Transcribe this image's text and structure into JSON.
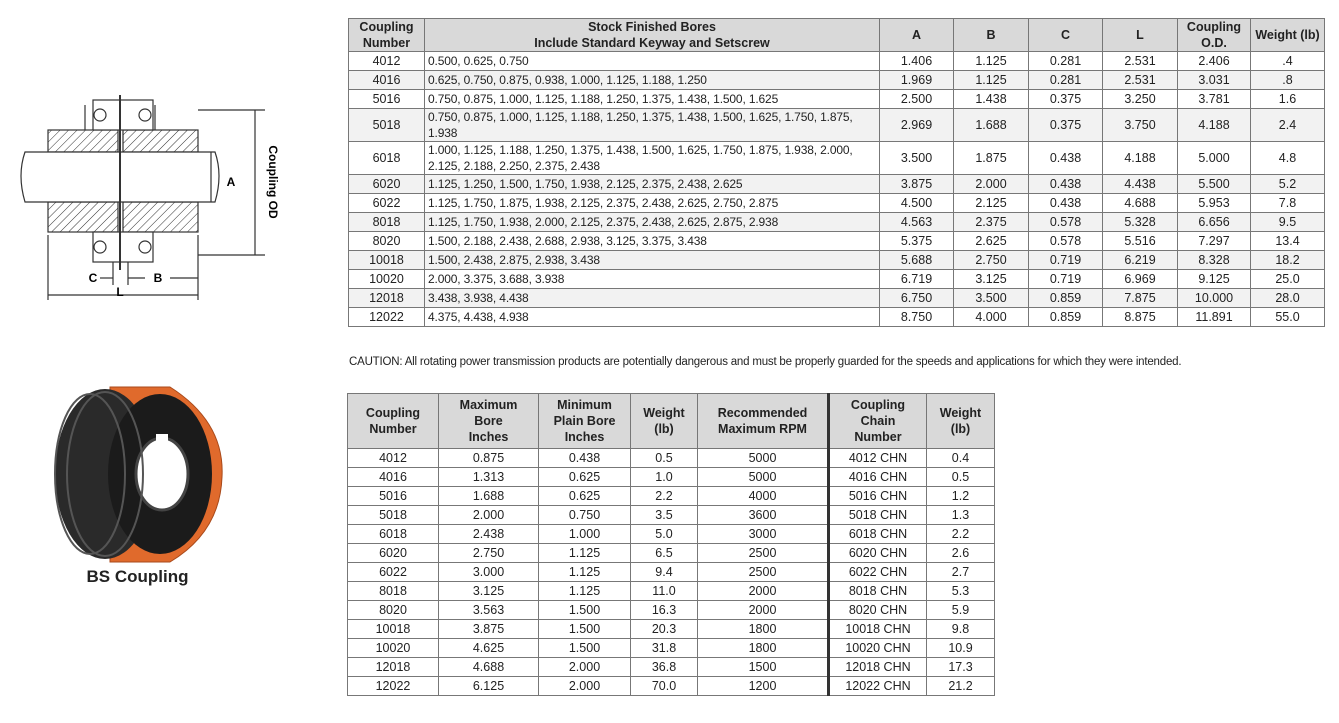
{
  "diagram": {
    "label_a": "A",
    "label_od": "Coupling OD",
    "label_c": "C",
    "label_l": "L",
    "label_b": "B"
  },
  "photo": {
    "caption": "BS Coupling"
  },
  "table1": {
    "headers": [
      [
        "Coupling",
        "Number"
      ],
      [
        "Stock Finished Bores",
        "Include Standard Keyway and Setscrew"
      ],
      [
        "A"
      ],
      [
        "B"
      ],
      [
        "C"
      ],
      [
        "L"
      ],
      [
        "Coupling",
        "O.D."
      ],
      [
        "Weight (lb)"
      ]
    ],
    "rows": [
      [
        "4012",
        "0.500, 0.625, 0.750",
        "1.406",
        "1.125",
        "0.281",
        "2.531",
        "2.406",
        ".4"
      ],
      [
        "4016",
        "0.625, 0.750, 0.875, 0.938, 1.000, 1.125, 1.188, 1.250",
        "1.969",
        "1.125",
        "0.281",
        "2.531",
        "3.031",
        ".8"
      ],
      [
        "5016",
        "0.750, 0.875, 1.000, 1.125, 1.188, 1.250, 1.375, 1.438, 1.500, 1.625",
        "2.500",
        "1.438",
        "0.375",
        "3.250",
        "3.781",
        "1.6"
      ],
      [
        "5018",
        "0.750, 0.875, 1.000, 1.125, 1.188, 1.250, 1.375, 1.438, 1.500, 1.625, 1.750, 1.875, 1.938",
        "2.969",
        "1.688",
        "0.375",
        "3.750",
        "4.188",
        "2.4"
      ],
      [
        "6018",
        "1.000, 1.125, 1.188, 1.250, 1.375, 1.438, 1.500, 1.625, 1.750, 1.875, 1.938, 2.000, 2.125, 2.188, 2.250, 2.375, 2.438",
        "3.500",
        "1.875",
        "0.438",
        "4.188",
        "5.000",
        "4.8"
      ],
      [
        "6020",
        "1.125, 1.250, 1.500, 1.750, 1.938, 2.125, 2.375, 2.438, 2.625",
        "3.875",
        "2.000",
        "0.438",
        "4.438",
        "5.500",
        "5.2"
      ],
      [
        "6022",
        "1.125, 1.750, 1.875, 1.938, 2.125, 2.375, 2.438, 2.625, 2.750, 2.875",
        "4.500",
        "2.125",
        "0.438",
        "4.688",
        "5.953",
        "7.8"
      ],
      [
        "8018",
        "1.125, 1.750, 1.938, 2.000, 2.125, 2.375, 2.438, 2.625, 2.875, 2.938",
        "4.563",
        "2.375",
        "0.578",
        "5.328",
        "6.656",
        "9.5"
      ],
      [
        "8020",
        "1.500, 2.188, 2.438, 2.688, 2.938, 3.125, 3.375, 3.438",
        "5.375",
        "2.625",
        "0.578",
        "5.516",
        "7.297",
        "13.4"
      ],
      [
        "10018",
        "1.500, 2.438, 2.875, 2.938, 3.438",
        "5.688",
        "2.750",
        "0.719",
        "6.219",
        "8.328",
        "18.2"
      ],
      [
        "10020",
        "2.000, 3.375, 3.688, 3.938",
        "6.719",
        "3.125",
        "0.719",
        "6.969",
        "9.125",
        "25.0"
      ],
      [
        "12018",
        "3.438, 3.938, 4.438",
        "6.750",
        "3.500",
        "0.859",
        "7.875",
        "10.000",
        "28.0"
      ],
      [
        "12022",
        "4.375, 4.438, 4.938",
        "8.750",
        "4.000",
        "0.859",
        "8.875",
        "11.891",
        "55.0"
      ]
    ]
  },
  "caution": "CAUTION: All rotating power transmission products are potentially dangerous and must be properly guarded for the speeds and applications for which they were intended.",
  "table2": {
    "headers": [
      [
        "Coupling",
        "Number"
      ],
      [
        "Maximum",
        "Bore",
        "Inches"
      ],
      [
        "Minimum",
        "Plain Bore",
        "Inches"
      ],
      [
        "Weight",
        "(lb)"
      ],
      [
        "Recommended",
        "Maximum RPM"
      ],
      [
        "Coupling",
        "Chain",
        "Number"
      ],
      [
        "Weight",
        "(lb)"
      ]
    ],
    "rows": [
      [
        "4012",
        "0.875",
        "0.438",
        "0.5",
        "5000",
        "4012 CHN",
        "0.4"
      ],
      [
        "4016",
        "1.313",
        "0.625",
        "1.0",
        "5000",
        "4016 CHN",
        "0.5"
      ],
      [
        "5016",
        "1.688",
        "0.625",
        "2.2",
        "4000",
        "5016 CHN",
        "1.2"
      ],
      [
        "5018",
        "2.000",
        "0.750",
        "3.5",
        "3600",
        "5018 CHN",
        "1.3"
      ],
      [
        "6018",
        "2.438",
        "1.000",
        "5.0",
        "3000",
        "6018 CHN",
        "2.2"
      ],
      [
        "6020",
        "2.750",
        "1.125",
        "6.5",
        "2500",
        "6020 CHN",
        "2.6"
      ],
      [
        "6022",
        "3.000",
        "1.125",
        "9.4",
        "2500",
        "6022 CHN",
        "2.7"
      ],
      [
        "8018",
        "3.125",
        "1.125",
        "11.0",
        "2000",
        "8018 CHN",
        "5.3"
      ],
      [
        "8020",
        "3.563",
        "1.500",
        "16.3",
        "2000",
        "8020 CHN",
        "5.9"
      ],
      [
        "10018",
        "3.875",
        "1.500",
        "20.3",
        "1800",
        "10018 CHN",
        "9.8"
      ],
      [
        "10020",
        "4.625",
        "1.500",
        "31.8",
        "1800",
        "10020 CHN",
        "10.9"
      ],
      [
        "12018",
        "4.688",
        "2.000",
        "36.8",
        "1500",
        "12018 CHN",
        "17.3"
      ],
      [
        "12022",
        "6.125",
        "2.000",
        "70.0",
        "1200",
        "12022 CHN",
        "21.2"
      ]
    ]
  }
}
